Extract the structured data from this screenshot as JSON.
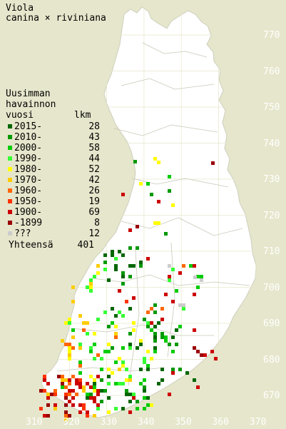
{
  "title": {
    "line1": "Viola",
    "line2": "canina × riviniana"
  },
  "legend": {
    "heading": [
      "Uusimman",
      "havainnon",
      "vuosi"
    ],
    "count_header": "lkm",
    "rows": [
      {
        "label": "2015-",
        "count": "28",
        "color": "#006600"
      },
      {
        "label": "2010-",
        "count": "43",
        "color": "#009900"
      },
      {
        "label": "2000-",
        "count": "58",
        "color": "#00cc00"
      },
      {
        "label": "1990-",
        "count": "44",
        "color": "#33ff33"
      },
      {
        "label": "1980-",
        "count": "52",
        "color": "#ffff00"
      },
      {
        "label": "1970-",
        "count": "42",
        "color": "#ffcc00"
      },
      {
        "label": "1960-",
        "count": "26",
        "color": "#ff6600"
      },
      {
        "label": "1950-",
        "count": "19",
        "color": "#ff3300"
      },
      {
        "label": "1900-",
        "count": "69",
        "color": "#cc0000"
      },
      {
        "label": "-1899",
        "count": "8",
        "color": "#990000"
      },
      {
        "label": "???",
        "count": "12",
        "color": "#cccccc"
      }
    ],
    "total_label": "Yhteensä",
    "total_count": "401"
  },
  "y_axis_labels": [
    "770",
    "760",
    "750",
    "740",
    "730",
    "720",
    "710",
    "700",
    "690",
    "680",
    "670"
  ],
  "x_axis_labels": [
    "310",
    "320",
    "330",
    "340",
    "350",
    "360",
    "370"
  ],
  "colors": {
    "background": "#e6e6cc",
    "land": "#ffffff",
    "grid": "#e6e6cc"
  }
}
